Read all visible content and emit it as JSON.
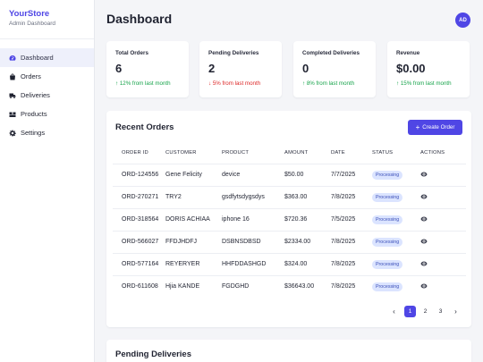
{
  "brand": {
    "name": "YourStore",
    "subtitle": "Admin Dashboard"
  },
  "sidebar": {
    "items": [
      {
        "label": "Dashboard",
        "icon": "dashboard-icon",
        "active": true
      },
      {
        "label": "Orders",
        "icon": "bag-icon",
        "active": false
      },
      {
        "label": "Deliveries",
        "icon": "truck-icon",
        "active": false
      },
      {
        "label": "Products",
        "icon": "boxes-icon",
        "active": false
      },
      {
        "label": "Settings",
        "icon": "gear-icon",
        "active": false
      }
    ]
  },
  "header": {
    "title": "Dashboard",
    "avatar_initials": "AD"
  },
  "stats": [
    {
      "label": "Total Orders",
      "value": "6",
      "change": "12% from last month",
      "direction": "up"
    },
    {
      "label": "Pending Deliveries",
      "value": "2",
      "change": "5% from last month",
      "direction": "down"
    },
    {
      "label": "Completed Deliveries",
      "value": "0",
      "change": "8% from last month",
      "direction": "up"
    },
    {
      "label": "Revenue",
      "value": "$0.00",
      "change": "15% from last month",
      "direction": "up"
    }
  ],
  "orders": {
    "title": "Recent Orders",
    "create_label": "Create Order",
    "columns": [
      "ORDER ID",
      "CUSTOMER",
      "PRODUCT",
      "AMOUNT",
      "DATE",
      "STATUS",
      "ACTIONS"
    ],
    "rows": [
      {
        "id": "ORD-124556",
        "customer": "Gene Felicity",
        "product": "device",
        "amount": "$50.00",
        "date": "7/7/2025",
        "status": "Processing"
      },
      {
        "id": "ORD-270271",
        "customer": "TRY2",
        "product": "gsdfytsdygsdys",
        "amount": "$363.00",
        "date": "7/8/2025",
        "status": "Processing"
      },
      {
        "id": "ORD-318564",
        "customer": "DORIS ACHIAA",
        "product": "iphone 16",
        "amount": "$720.36",
        "date": "7/5/2025",
        "status": "Processing"
      },
      {
        "id": "ORD-566027",
        "customer": "FFDJHDFJ",
        "product": "DSBNSDBSD",
        "amount": "$2334.00",
        "date": "7/8/2025",
        "status": "Processing"
      },
      {
        "id": "ORD-577164",
        "customer": "REYERYER",
        "product": "HHFDDASHGD",
        "amount": "$324.00",
        "date": "7/8/2025",
        "status": "Processing"
      },
      {
        "id": "ORD-611608",
        "customer": "Hjia KANDE",
        "product": "FGDGHD",
        "amount": "$36643.00",
        "date": "7/8/2025",
        "status": "Processing"
      }
    ],
    "pagination": {
      "prev": "‹",
      "pages": [
        "1",
        "2",
        "3"
      ],
      "current": "1",
      "next": "›"
    }
  },
  "pending": {
    "title": "Pending Deliveries"
  },
  "colors": {
    "accent": "#4f46e5",
    "up": "#16a34a",
    "down": "#dc2626",
    "badge_bg": "#dbe4ff"
  }
}
